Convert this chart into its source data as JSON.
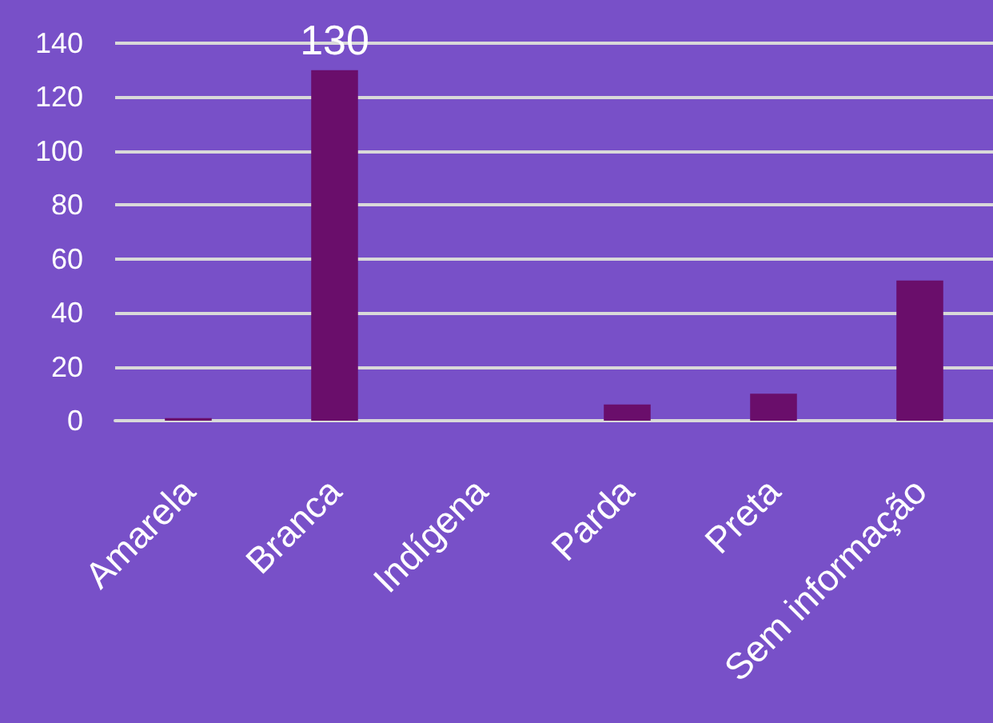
{
  "chart_data": {
    "type": "bar",
    "categories": [
      "Amarela",
      "Branca",
      "Indígena",
      "Parda",
      "Preta",
      "Sem informação"
    ],
    "values": [
      1,
      130,
      0,
      6,
      10,
      52
    ],
    "color": "#6a0e6b",
    "value_labels": [
      null,
      "130",
      null,
      null,
      null,
      null
    ],
    "ylim": [
      0,
      140
    ],
    "yticks": [
      0,
      20,
      40,
      60,
      80,
      100,
      120,
      140
    ],
    "grid": "y"
  }
}
